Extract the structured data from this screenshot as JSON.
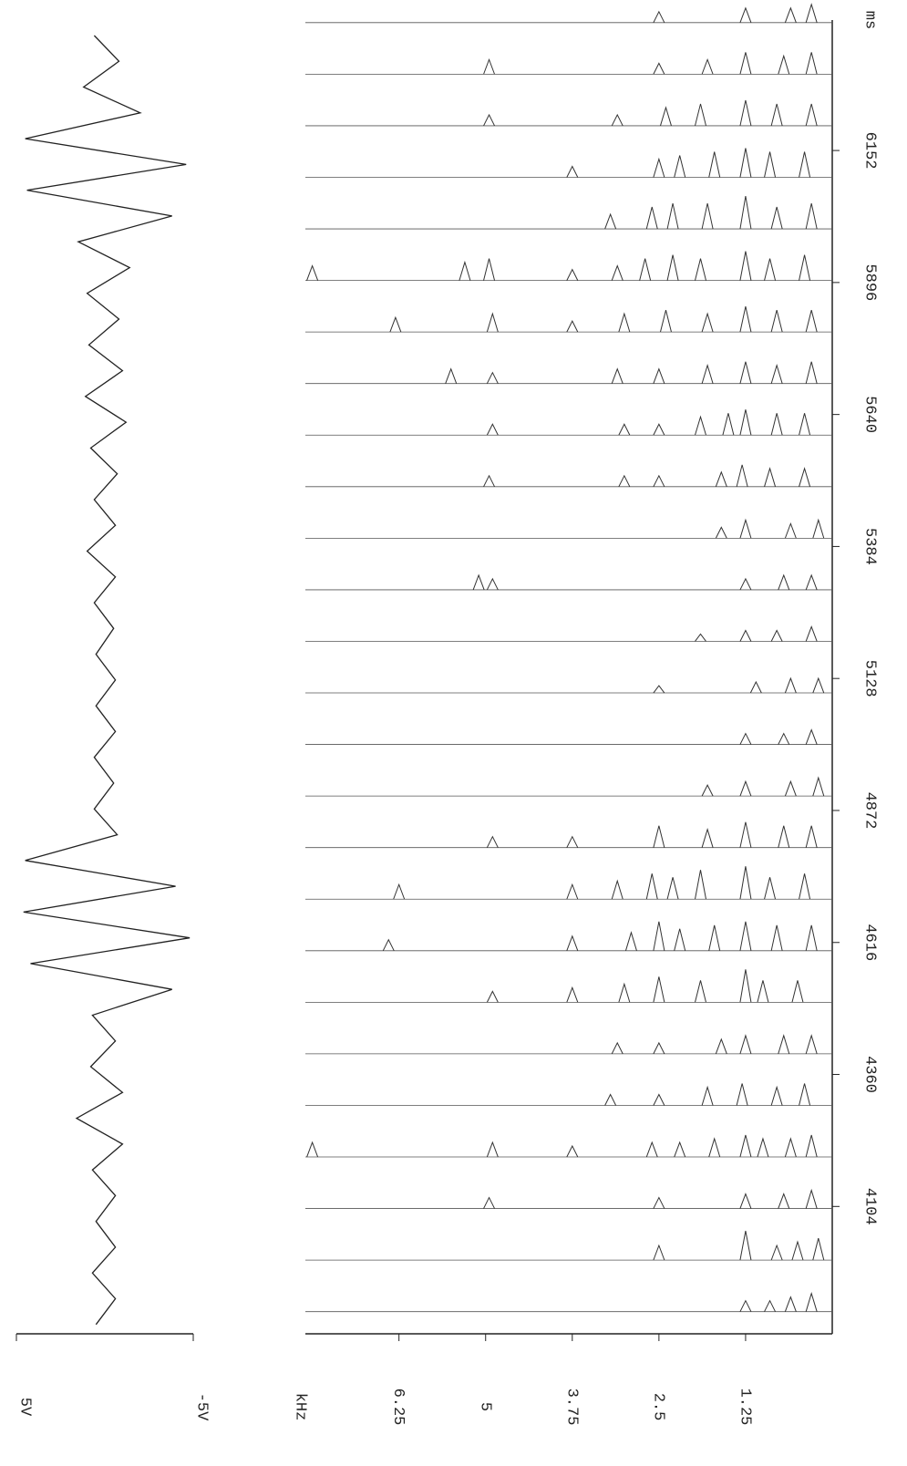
{
  "chart_data": [
    {
      "type": "line",
      "color": "#222",
      "x": [
        3875,
        3925,
        3975,
        4025,
        4075,
        4125,
        4175,
        4225,
        4275,
        4325,
        4375,
        4425,
        4475,
        4525,
        4575,
        4625,
        4675,
        4725,
        4775,
        4825,
        4875,
        4925,
        4975,
        5025,
        5075,
        5125,
        5175,
        5225,
        5275,
        5325,
        5375,
        5425,
        5475,
        5525,
        5575,
        5625,
        5675,
        5725,
        5775,
        5825,
        5875,
        5925,
        5975,
        6025,
        6075,
        6125,
        6175,
        6225,
        6275,
        6325,
        6375
      ],
      "values": [
        0.5,
        -0.6,
        0.7,
        -0.6,
        0.5,
        -0.6,
        0.7,
        -1.0,
        1.6,
        -1.0,
        0.8,
        -0.6,
        0.7,
        -3.8,
        4.2,
        -4.8,
        4.6,
        -4.0,
        4.5,
        -0.7,
        0.6,
        -0.5,
        0.6,
        -0.6,
        0.5,
        -0.6,
        0.5,
        -0.5,
        0.6,
        -0.6,
        1.0,
        -0.6,
        0.6,
        -0.7,
        0.8,
        -1.2,
        1.1,
        -1.0,
        0.9,
        -0.8,
        1.0,
        -1.4,
        1.5,
        -3.8,
        4.4,
        -4.6,
        4.5,
        -2.0,
        1.2,
        -0.8,
        0.6
      ],
      "xlim": [
        5,
        -5
      ],
      "xticks": [
        {
          "value": 5,
          "label": "5V"
        },
        {
          "value": -5,
          "label": "-5V"
        }
      ],
      "ylim": [
        3857,
        6405
      ]
    },
    {
      "type": "waterfall",
      "color": "#333",
      "x_label": "kHz",
      "y_label": "ms",
      "xlim": [
        7.6,
        0
      ],
      "xticks": [
        1.25,
        2.5,
        3.75,
        5,
        6.25
      ],
      "ylim": [
        3857,
        6405
      ],
      "yticks": [
        4104,
        4360,
        4616,
        4872,
        5128,
        5384,
        5640,
        5896,
        6152
      ],
      "traces": [
        {
          "time": 3900,
          "peaks": [
            [
              0.3,
              0.5
            ],
            [
              0.6,
              0.4
            ],
            [
              1.25,
              0.3
            ],
            [
              0.9,
              0.3
            ]
          ]
        },
        {
          "time": 4000,
          "peaks": [
            [
              0.2,
              0.6
            ],
            [
              0.5,
              0.5
            ],
            [
              1.25,
              0.8
            ],
            [
              2.5,
              0.4
            ],
            [
              0.8,
              0.4
            ]
          ]
        },
        {
          "time": 4100,
          "peaks": [
            [
              0.3,
              0.5
            ],
            [
              0.7,
              0.4
            ],
            [
              1.25,
              0.4
            ],
            [
              2.5,
              0.3
            ],
            [
              4.95,
              0.3
            ]
          ]
        },
        {
          "time": 4200,
          "peaks": [
            [
              0.3,
              0.6
            ],
            [
              0.6,
              0.5
            ],
            [
              1.0,
              0.5
            ],
            [
              1.25,
              0.6
            ],
            [
              1.7,
              0.5
            ],
            [
              2.2,
              0.4
            ],
            [
              2.6,
              0.4
            ],
            [
              3.75,
              0.3
            ],
            [
              4.9,
              0.4
            ],
            [
              7.5,
              0.4
            ]
          ]
        },
        {
          "time": 4300,
          "peaks": [
            [
              0.4,
              0.6
            ],
            [
              0.8,
              0.5
            ],
            [
              1.3,
              0.6
            ],
            [
              1.8,
              0.5
            ],
            [
              2.5,
              0.3
            ],
            [
              3.2,
              0.3
            ]
          ]
        },
        {
          "time": 4400,
          "peaks": [
            [
              0.3,
              0.5
            ],
            [
              0.7,
              0.5
            ],
            [
              1.25,
              0.5
            ],
            [
              1.6,
              0.4
            ],
            [
              2.5,
              0.3
            ],
            [
              3.1,
              0.3
            ]
          ]
        },
        {
          "time": 4500,
          "peaks": [
            [
              0.5,
              0.6
            ],
            [
              1.0,
              0.6
            ],
            [
              1.25,
              0.9
            ],
            [
              1.9,
              0.6
            ],
            [
              2.5,
              0.7
            ],
            [
              3.0,
              0.5
            ],
            [
              3.75,
              0.4
            ],
            [
              4.9,
              0.3
            ]
          ]
        },
        {
          "time": 4600,
          "peaks": [
            [
              0.3,
              0.7
            ],
            [
              0.8,
              0.7
            ],
            [
              1.25,
              0.8
            ],
            [
              1.7,
              0.7
            ],
            [
              2.2,
              0.6
            ],
            [
              2.5,
              0.8
            ],
            [
              2.9,
              0.5
            ],
            [
              3.75,
              0.4
            ],
            [
              6.4,
              0.3
            ]
          ]
        },
        {
          "time": 4700,
          "peaks": [
            [
              0.4,
              0.7
            ],
            [
              0.9,
              0.6
            ],
            [
              1.25,
              0.9
            ],
            [
              1.9,
              0.8
            ],
            [
              2.3,
              0.6
            ],
            [
              2.6,
              0.7
            ],
            [
              3.1,
              0.5
            ],
            [
              3.75,
              0.4
            ],
            [
              6.25,
              0.4
            ]
          ]
        },
        {
          "time": 4800,
          "peaks": [
            [
              0.3,
              0.6
            ],
            [
              0.7,
              0.6
            ],
            [
              1.25,
              0.7
            ],
            [
              1.8,
              0.5
            ],
            [
              2.5,
              0.6
            ],
            [
              3.75,
              0.3
            ],
            [
              4.9,
              0.3
            ]
          ]
        },
        {
          "time": 4900,
          "peaks": [
            [
              0.2,
              0.5
            ],
            [
              0.6,
              0.4
            ],
            [
              1.25,
              0.4
            ],
            [
              1.8,
              0.3
            ]
          ]
        },
        {
          "time": 5000,
          "peaks": [
            [
              0.3,
              0.4
            ],
            [
              0.7,
              0.3
            ],
            [
              1.25,
              0.3
            ]
          ]
        },
        {
          "time": 5100,
          "peaks": [
            [
              0.2,
              0.4
            ],
            [
              0.6,
              0.4
            ],
            [
              1.1,
              0.3
            ],
            [
              2.5,
              0.2
            ]
          ]
        },
        {
          "time": 5200,
          "peaks": [
            [
              0.3,
              0.4
            ],
            [
              0.8,
              0.3
            ],
            [
              1.25,
              0.3
            ],
            [
              1.9,
              0.2
            ]
          ]
        },
        {
          "time": 5300,
          "peaks": [
            [
              0.3,
              0.4
            ],
            [
              0.7,
              0.4
            ],
            [
              1.25,
              0.3
            ],
            [
              5.1,
              0.4
            ],
            [
              4.9,
              0.3
            ]
          ]
        },
        {
          "time": 5400,
          "peaks": [
            [
              0.2,
              0.5
            ],
            [
              0.6,
              0.4
            ],
            [
              1.25,
              0.5
            ],
            [
              1.6,
              0.3
            ]
          ]
        },
        {
          "time": 5500,
          "peaks": [
            [
              0.4,
              0.5
            ],
            [
              0.9,
              0.5
            ],
            [
              1.3,
              0.6
            ],
            [
              1.6,
              0.4
            ],
            [
              2.5,
              0.3
            ],
            [
              3.0,
              0.3
            ],
            [
              4.95,
              0.3
            ]
          ]
        },
        {
          "time": 5600,
          "peaks": [
            [
              0.4,
              0.6
            ],
            [
              0.8,
              0.6
            ],
            [
              1.25,
              0.7
            ],
            [
              1.5,
              0.6
            ],
            [
              1.9,
              0.5
            ],
            [
              2.5,
              0.3
            ],
            [
              3.0,
              0.3
            ],
            [
              4.9,
              0.3
            ]
          ]
        },
        {
          "time": 5700,
          "peaks": [
            [
              0.3,
              0.6
            ],
            [
              0.8,
              0.5
            ],
            [
              1.25,
              0.6
            ],
            [
              1.8,
              0.5
            ],
            [
              2.5,
              0.4
            ],
            [
              3.1,
              0.4
            ],
            [
              4.9,
              0.3
            ],
            [
              5.5,
              0.4
            ]
          ]
        },
        {
          "time": 5800,
          "peaks": [
            [
              0.3,
              0.6
            ],
            [
              0.8,
              0.6
            ],
            [
              1.25,
              0.7
            ],
            [
              1.8,
              0.5
            ],
            [
              2.4,
              0.6
            ],
            [
              3.0,
              0.5
            ],
            [
              3.75,
              0.3
            ],
            [
              4.9,
              0.5
            ],
            [
              6.3,
              0.4
            ]
          ]
        },
        {
          "time": 5900,
          "peaks": [
            [
              0.4,
              0.7
            ],
            [
              0.9,
              0.6
            ],
            [
              1.25,
              0.8
            ],
            [
              1.9,
              0.6
            ],
            [
              2.3,
              0.7
            ],
            [
              2.7,
              0.6
            ],
            [
              3.1,
              0.4
            ],
            [
              3.75,
              0.3
            ],
            [
              4.95,
              0.6
            ],
            [
              5.3,
              0.5
            ],
            [
              7.5,
              0.4
            ]
          ]
        },
        {
          "time": 6000,
          "peaks": [
            [
              0.3,
              0.7
            ],
            [
              0.8,
              0.6
            ],
            [
              1.25,
              0.9
            ],
            [
              1.8,
              0.7
            ],
            [
              2.3,
              0.7
            ],
            [
              2.6,
              0.6
            ],
            [
              3.2,
              0.4
            ]
          ]
        },
        {
          "time": 6100,
          "peaks": [
            [
              0.4,
              0.7
            ],
            [
              0.9,
              0.7
            ],
            [
              1.25,
              0.8
            ],
            [
              1.7,
              0.7
            ],
            [
              2.2,
              0.6
            ],
            [
              2.5,
              0.5
            ],
            [
              3.75,
              0.3
            ]
          ]
        },
        {
          "time": 6200,
          "peaks": [
            [
              0.3,
              0.6
            ],
            [
              0.8,
              0.6
            ],
            [
              1.25,
              0.7
            ],
            [
              1.9,
              0.6
            ],
            [
              2.4,
              0.5
            ],
            [
              3.1,
              0.3
            ],
            [
              4.95,
              0.3
            ]
          ]
        },
        {
          "time": 6300,
          "peaks": [
            [
              0.3,
              0.6
            ],
            [
              0.7,
              0.5
            ],
            [
              1.25,
              0.6
            ],
            [
              1.8,
              0.4
            ],
            [
              2.5,
              0.3
            ],
            [
              4.95,
              0.4
            ]
          ]
        },
        {
          "time": 6400,
          "peaks": [
            [
              0.3,
              0.5
            ],
            [
              0.6,
              0.4
            ],
            [
              1.25,
              0.4
            ],
            [
              2.5,
              0.3
            ]
          ]
        }
      ]
    }
  ]
}
